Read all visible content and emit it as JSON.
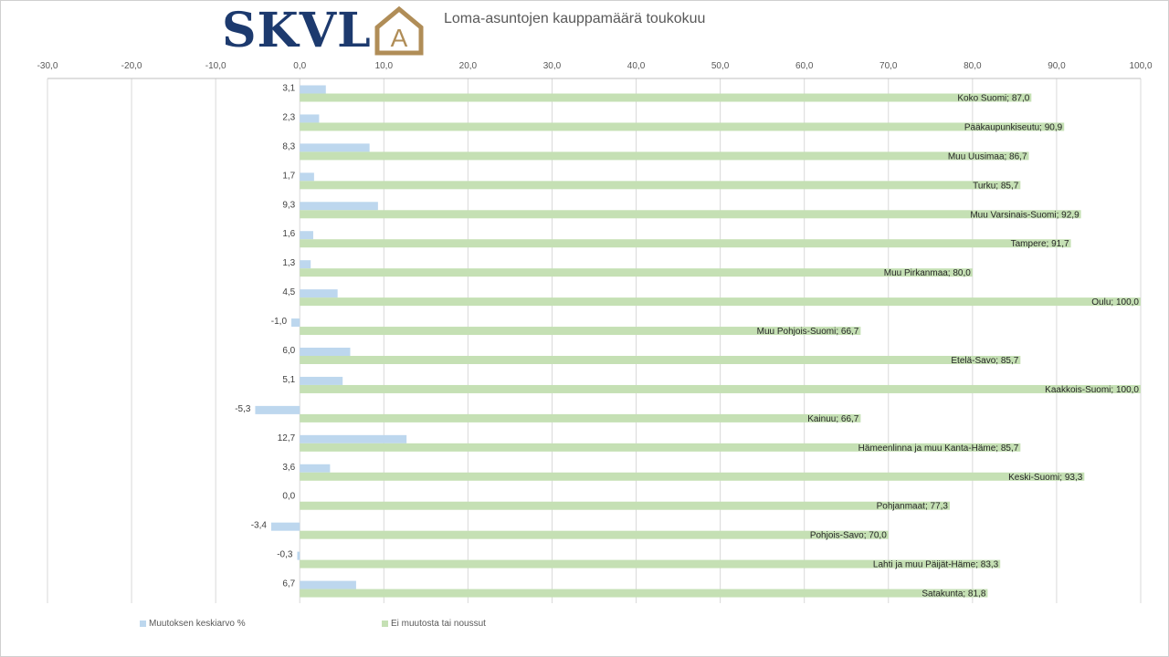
{
  "logo": {
    "text": "SKVL",
    "letter": "A"
  },
  "chart_data": {
    "type": "bar",
    "orientation": "horizontal",
    "title": "Loma-asuntojen kauppamäärä toukokuu",
    "xlim": [
      -30,
      100
    ],
    "x_ticks": [
      "-30,0",
      "-20,0",
      "-10,0",
      "0,0",
      "10,0",
      "20,0",
      "30,0",
      "40,0",
      "50,0",
      "60,0",
      "70,0",
      "80,0",
      "90,0",
      "100,0"
    ],
    "categories": [
      "Koko Suomi",
      "Pääkaupunkiseutu",
      "Muu Uusimaa",
      "Turku",
      "Muu Varsinais-Suomi",
      "Tampere",
      "Muu Pirkanmaa",
      "Oulu",
      "Muu Pohjois-Suomi",
      "Etelä-Savo",
      "Kaakkois-Suomi",
      "Kainuu",
      "Hämeenlinna ja muu Kanta-Häme",
      "Keski-Suomi",
      "Pohjanmaat",
      "Pohjois-Savo",
      "Lahti ja muu Päijät-Häme",
      "Satakunta"
    ],
    "series": [
      {
        "name": "Muutoksen keskiarvo %",
        "color": "#bdd7ee",
        "values": [
          3.1,
          2.3,
          8.3,
          1.7,
          9.3,
          1.6,
          1.3,
          4.5,
          -1.0,
          6.0,
          5.1,
          -5.3,
          12.7,
          3.6,
          0.0,
          -3.4,
          -0.3,
          6.7
        ],
        "labels": [
          "3,1",
          "2,3",
          "8,3",
          "1,7",
          "9,3",
          "1,6",
          "1,3",
          "4,5",
          "-1,0",
          "6,0",
          "5,1",
          "-5,3",
          "12,7",
          "3,6",
          "0,0",
          "-3,4",
          "-0,3",
          "6,7"
        ]
      },
      {
        "name": "Ei muutosta tai noussut",
        "color": "#c5e0b4",
        "values": [
          87.0,
          90.9,
          86.7,
          85.7,
          92.9,
          91.7,
          80.0,
          100.0,
          66.7,
          85.7,
          100.0,
          66.7,
          85.7,
          93.3,
          77.3,
          70.0,
          83.3,
          81.8
        ],
        "labels": [
          "Koko Suomi;  87,0",
          "Pääkaupunkiseutu; 90,9",
          "Muu Uusimaa; 86,7",
          "Turku;  85,7",
          "Muu Varsinais-Suomi; 92,9",
          "Tampere;  91,7",
          "Muu Pirkanmaa; 80,0",
          "Oulu; 100,0",
          "Muu Pohjois-Suomi; 66,7",
          "Etelä-Savo; 85,7",
          "Kaakkois-Suomi; 100,0",
          "Kainuu; 66,7",
          "Hämeenlinna ja muu Kanta-Häme;  85,7",
          "Keski-Suomi; 93,3",
          "Pohjanmaat; 77,3",
          "Pohjois-Savo; 70,0",
          "Lahti ja muu Päijät-Häme; 83,3",
          "Satakunta; 81,8"
        ]
      }
    ],
    "grid": true,
    "legend": "bottom"
  }
}
